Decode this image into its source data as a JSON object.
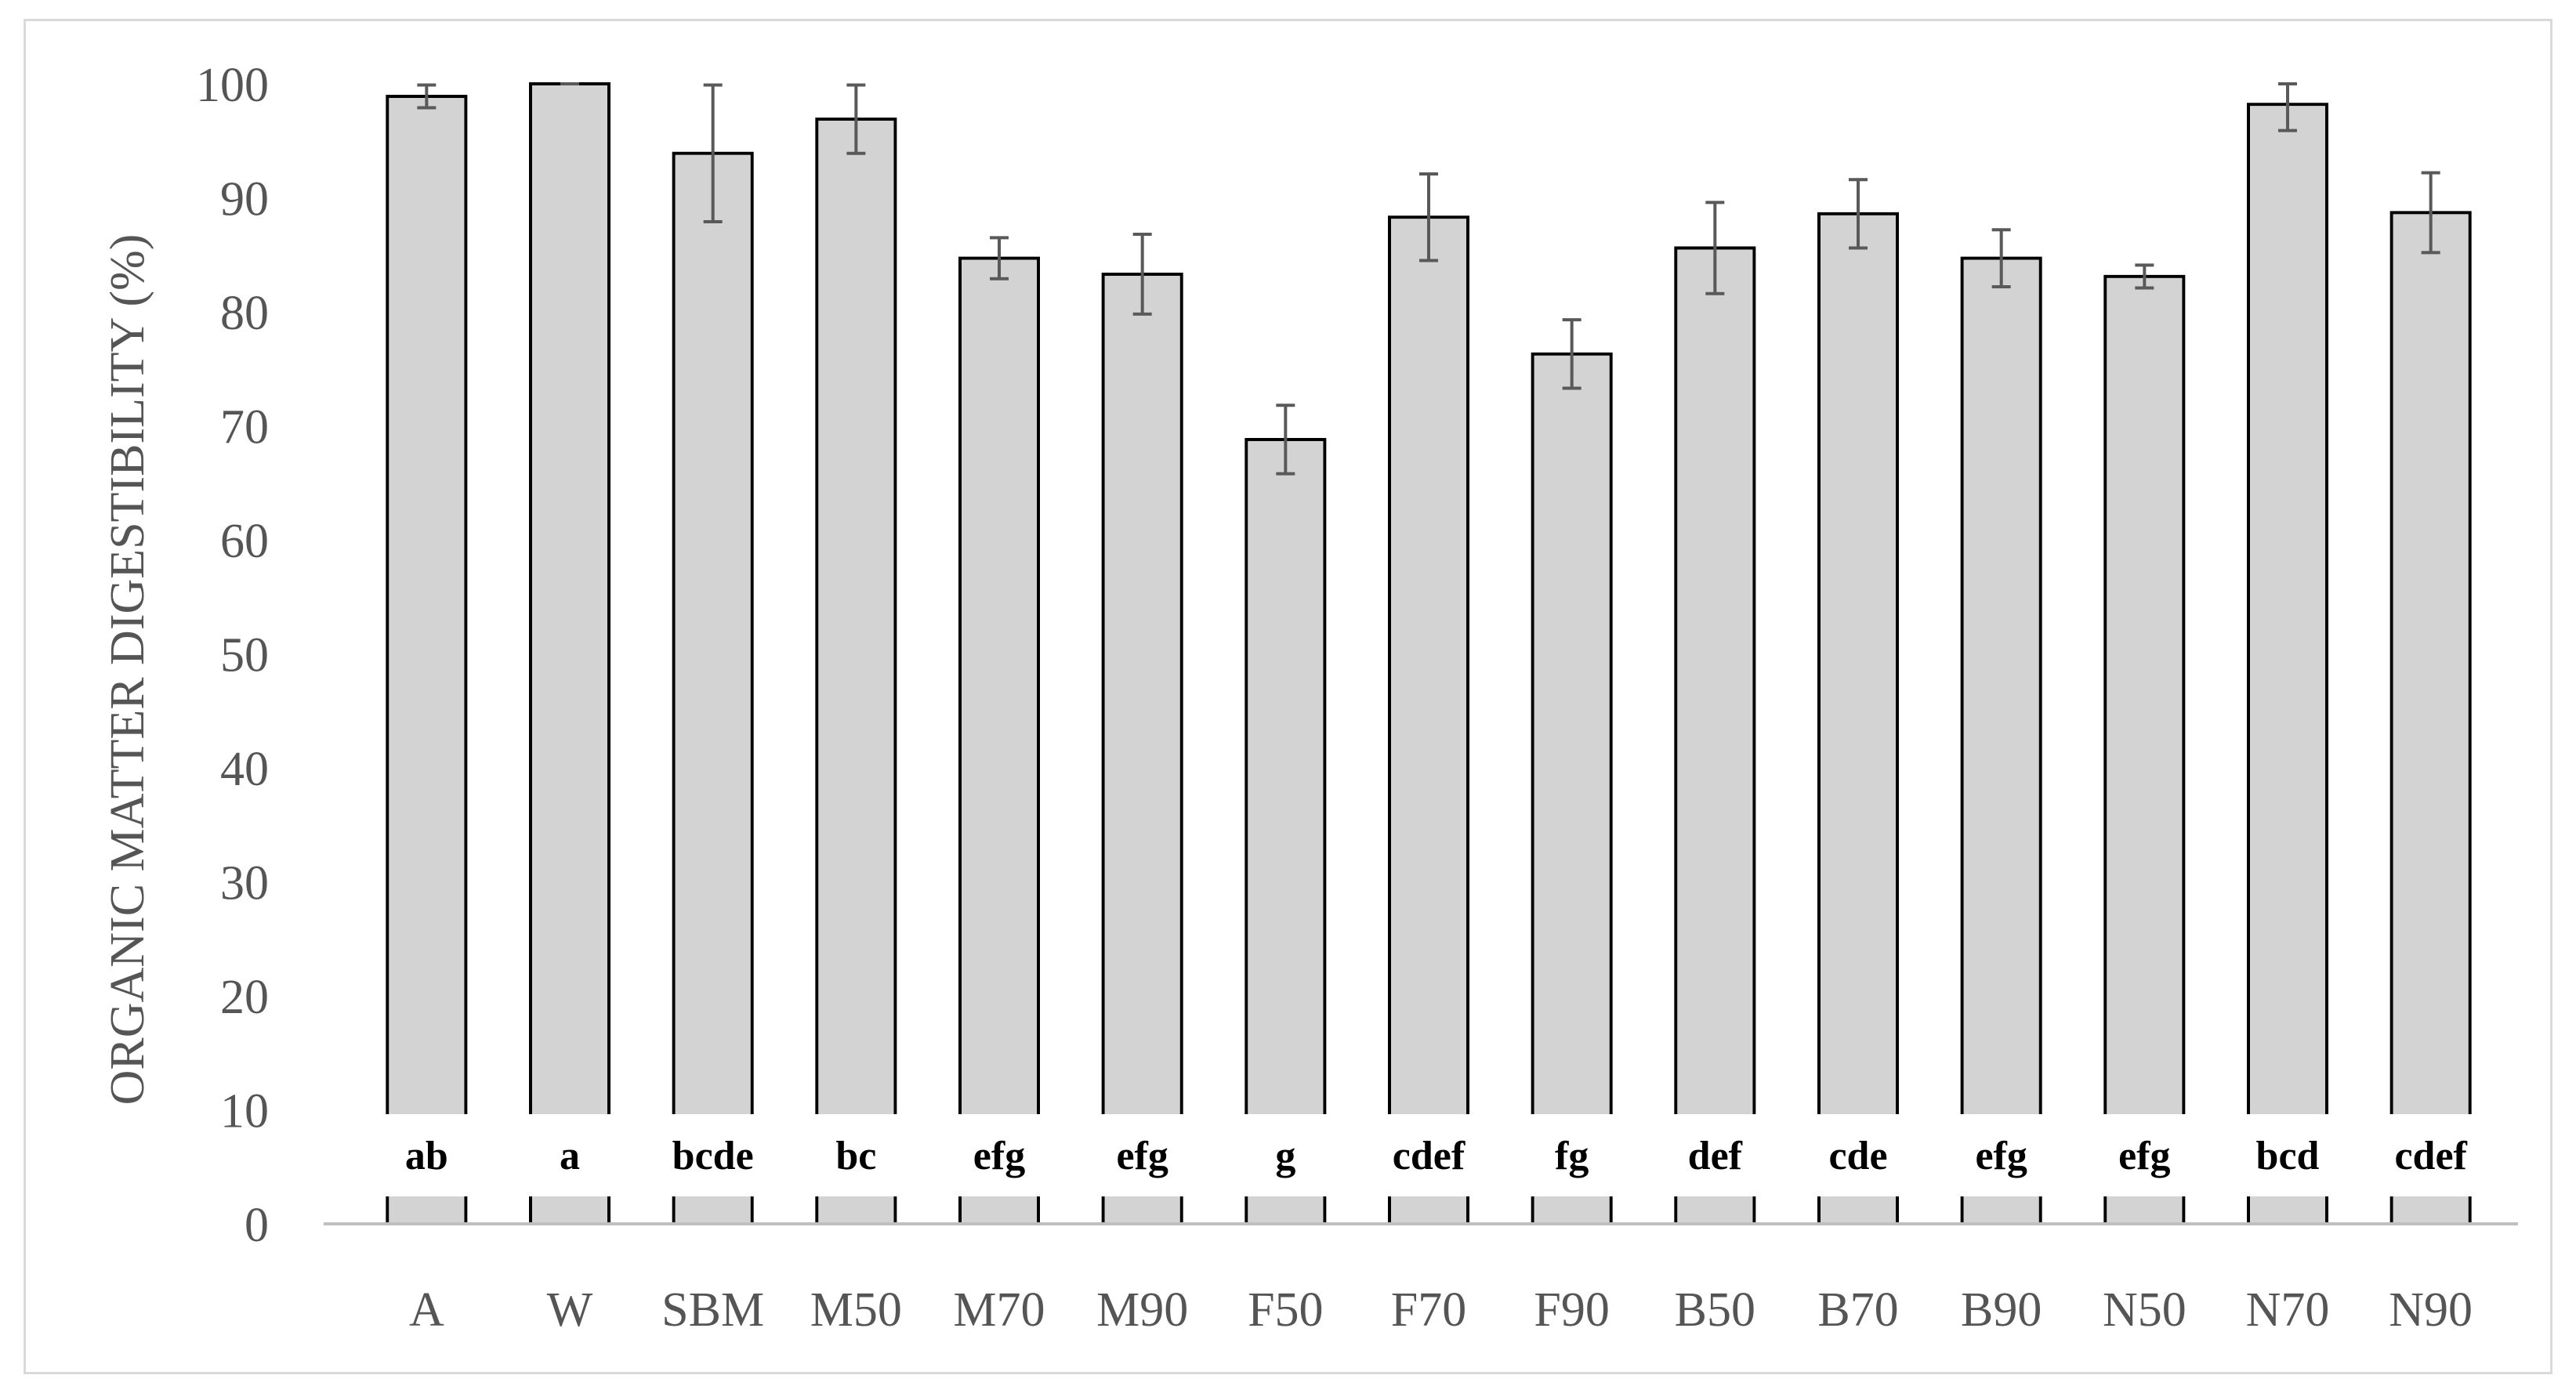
{
  "chart_data": {
    "type": "bar",
    "title": "",
    "xlabel": "",
    "ylabel": "ORGANIC MATTER DIGESTIBILITY (%)",
    "ylim": [
      0,
      100
    ],
    "yticks": [
      0,
      10,
      20,
      30,
      40,
      50,
      60,
      70,
      80,
      90,
      100
    ],
    "grid": false,
    "legend": "none",
    "categories": [
      "A",
      "W",
      "SBM",
      "M50",
      "M70",
      "M90",
      "F50",
      "F70",
      "F90",
      "B50",
      "B70",
      "B90",
      "N50",
      "N70",
      "N90"
    ],
    "values": [
      98.9,
      100.0,
      93.9,
      96.9,
      84.7,
      83.3,
      68.8,
      88.3,
      76.3,
      85.6,
      88.6,
      84.7,
      83.1,
      98.2,
      88.7
    ],
    "error": [
      1.0,
      0.0,
      6.0,
      3.0,
      1.8,
      3.5,
      3.0,
      3.8,
      3.0,
      4.0,
      3.0,
      2.5,
      1.0,
      2.3,
      3.5
    ],
    "significance_letters": [
      "ab",
      "a",
      "bcde",
      "bc",
      "efg",
      "efg",
      "g",
      "cdef",
      "fg",
      "def",
      "cde",
      "efg",
      "efg",
      "bcd",
      "cdef"
    ],
    "colors": {
      "bar_fill": "#d3d3d3",
      "bar_stroke": "#000000",
      "error_bar": "#595959",
      "axis": "#bfbfbf",
      "text": "#555555"
    }
  }
}
